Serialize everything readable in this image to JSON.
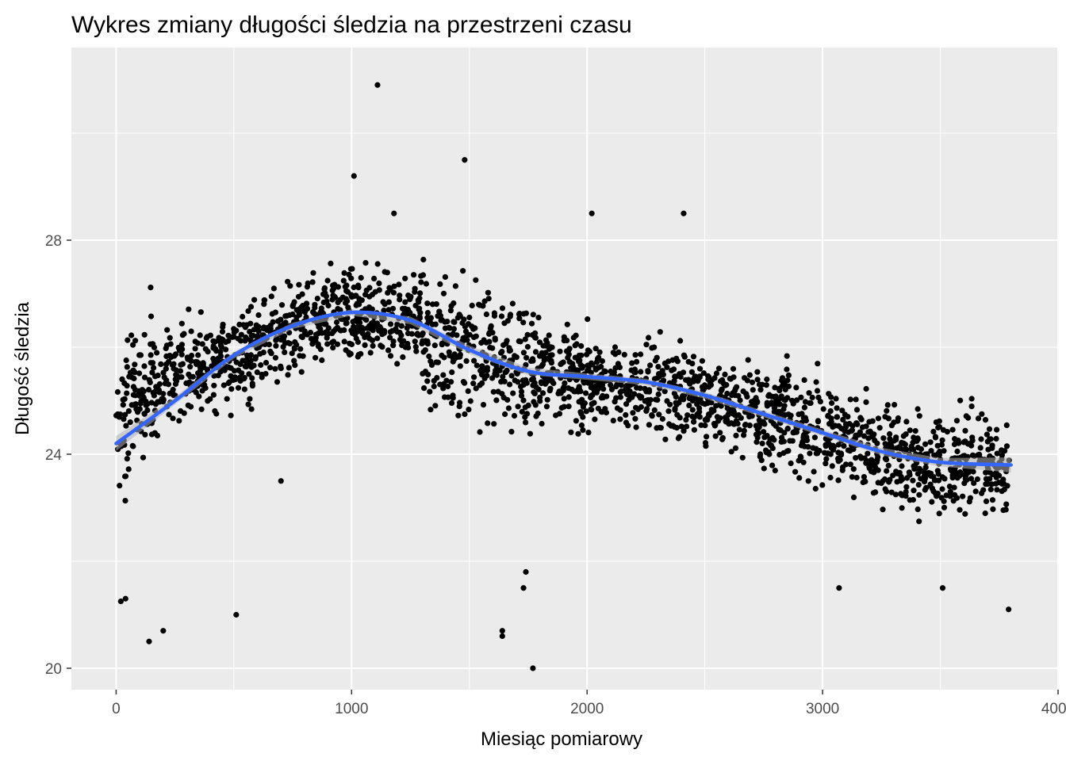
{
  "chart_data": {
    "type": "scatter",
    "title": "Wykres zmiany długości śledzia na przestrzeni czasu",
    "xlabel": "Miesiąc pomiarowy",
    "ylabel": "Długość śledzia",
    "xlim": [
      -190,
      4000
    ],
    "ylim": [
      19.6,
      31.6
    ],
    "x_ticks": [
      0,
      1000,
      2000,
      3000,
      4000
    ],
    "x_tick_labels": [
      "0",
      "1000",
      "2000",
      "3000",
      "4000"
    ],
    "y_ticks": [
      20,
      24,
      28
    ],
    "y_tick_labels": [
      "20",
      "24",
      "28"
    ],
    "grid": true,
    "background": "#ebebeb",
    "point_color": "#000000",
    "smooth_color": "#3366ff",
    "ribbon_color": "#b3b3b3",
    "point_count": 2400,
    "smooth_line": [
      [
        0,
        24.2
      ],
      [
        250,
        25.0
      ],
      [
        500,
        25.85
      ],
      [
        750,
        26.4
      ],
      [
        1000,
        26.65
      ],
      [
        1250,
        26.5
      ],
      [
        1500,
        25.95
      ],
      [
        1750,
        25.55
      ],
      [
        2000,
        25.45
      ],
      [
        2250,
        25.35
      ],
      [
        2500,
        25.1
      ],
      [
        2750,
        24.75
      ],
      [
        3000,
        24.4
      ],
      [
        3250,
        24.05
      ],
      [
        3500,
        23.85
      ],
      [
        3800,
        23.8
      ]
    ],
    "ribbon_halfwidth": [
      0.14,
      0.07,
      0.06,
      0.06,
      0.06,
      0.07,
      0.08,
      0.07,
      0.06,
      0.06,
      0.06,
      0.06,
      0.06,
      0.07,
      0.08,
      0.14
    ],
    "bands": [
      {
        "x": [
          0,
          150
        ],
        "center": [
          24.2,
          25.7
        ],
        "spread": 1.3
      },
      {
        "x": [
          150,
          600
        ],
        "center": [
          25.3,
          26.0
        ],
        "spread": 0.9
      },
      {
        "x": [
          600,
          900
        ],
        "center": [
          26.0,
          26.6
        ],
        "spread": 0.8
      },
      {
        "x": [
          900,
          1300
        ],
        "center": [
          26.6,
          26.6
        ],
        "spread": 0.8
      },
      {
        "x": [
          1300,
          1800
        ],
        "center": [
          26.2,
          25.6
        ],
        "spread": 1.3
      },
      {
        "x": [
          1800,
          2500
        ],
        "center": [
          25.5,
          25.1
        ],
        "spread": 0.8
      },
      {
        "x": [
          2500,
          3200
        ],
        "center": [
          25.0,
          24.2
        ],
        "spread": 0.9
      },
      {
        "x": [
          3200,
          3800
        ],
        "center": [
          24.0,
          23.7
        ],
        "spread": 0.9
      }
    ],
    "outliers": [
      [
        1110,
        30.9
      ],
      [
        1480,
        29.5
      ],
      [
        1180,
        28.5
      ],
      [
        1010,
        29.2
      ],
      [
        2020,
        28.5
      ],
      [
        2410,
        28.5
      ],
      [
        510,
        21.0
      ],
      [
        140,
        20.5
      ],
      [
        200,
        20.7
      ],
      [
        1640,
        20.7
      ],
      [
        1640,
        20.6
      ],
      [
        1770,
        20.0
      ],
      [
        3070,
        21.5
      ],
      [
        3790,
        21.1
      ],
      [
        3510,
        21.5
      ],
      [
        40,
        21.3
      ],
      [
        20,
        21.25
      ],
      [
        1730,
        21.5
      ],
      [
        1740,
        21.8
      ],
      [
        700,
        23.5
      ]
    ]
  }
}
